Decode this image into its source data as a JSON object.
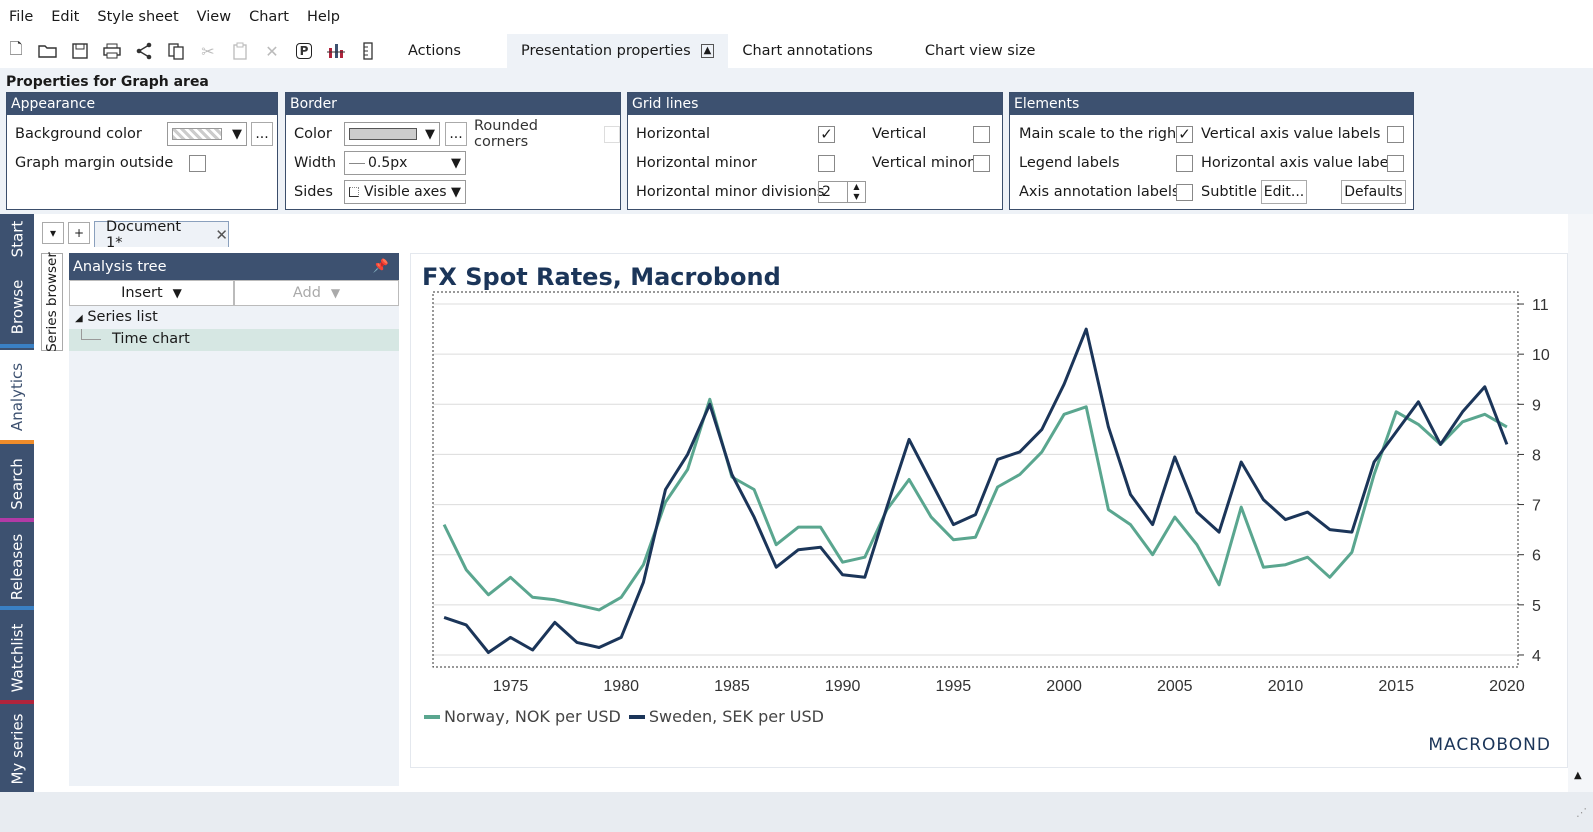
{
  "menu": [
    "File",
    "Edit",
    "Style sheet",
    "View",
    "Chart",
    "Help"
  ],
  "toolbar": {
    "icons": [
      "new-icon",
      "open-icon",
      "save-icon",
      "print-icon",
      "share-icon",
      "copy-icon",
      "cut-icon",
      "paste-icon",
      "delete-icon",
      "presentation-icon",
      "chart-type-icon",
      "ruler-icon"
    ],
    "p_label": "P",
    "tabs": {
      "actions": "Actions",
      "presentation": "Presentation properties",
      "annotations": "Chart annotations",
      "viewsize": "Chart view size"
    }
  },
  "props": {
    "title": "Properties for Graph area",
    "appearance": {
      "head": "Appearance",
      "bg_color": "Background color",
      "graph_margin": "Graph margin outside",
      "more": "..."
    },
    "border": {
      "head": "Border",
      "color": "Color",
      "width": "Width",
      "width_value": "0.5px",
      "sides": "Sides",
      "sides_value": "Visible axes",
      "rounded": "Rounded corners",
      "more": "..."
    },
    "grid": {
      "head": "Grid lines",
      "horizontal": "Horizontal",
      "vertical": "Vertical",
      "h_minor": "Horizontal minor",
      "v_minor": "Vertical minor",
      "h_minor_div": "Horizontal minor divisions",
      "h_minor_div_value": "2"
    },
    "elements": {
      "head": "Elements",
      "main_scale": "Main scale to the right",
      "v_axis_labels": "Vertical axis value labels",
      "legend": "Legend labels",
      "h_axis_labels": "Horizontal axis value labels",
      "axis_annot": "Axis annotation labels",
      "subtitle": "Subtitle",
      "edit": "Edit...",
      "defaults": "Defaults"
    }
  },
  "left_tabs": [
    "Start",
    "Browse",
    "Analytics",
    "Search",
    "Releases",
    "Watchlist",
    "My series"
  ],
  "document": {
    "tab": "Document 1*",
    "down": "▾",
    "plus": "+"
  },
  "series_browser": "Series browser",
  "tree": {
    "head": "Analysis tree",
    "insert": "Insert",
    "add": "Add",
    "series_list": "Series list",
    "time_chart": "Time chart"
  },
  "chart": {
    "title": "FX Spot Rates, Macrobond",
    "brand": "MACROBOND",
    "legend": [
      "Norway, NOK per USD",
      "Sweden, SEK per USD"
    ]
  },
  "colors": {
    "nav": "#3d5170",
    "norway": "#5aa68f",
    "sweden": "#1b3559"
  },
  "chart_data": {
    "type": "line",
    "title": "FX Spot Rates, Macrobond",
    "x": [
      1972,
      1973,
      1974,
      1975,
      1976,
      1977,
      1978,
      1979,
      1980,
      1981,
      1982,
      1983,
      1984,
      1985,
      1986,
      1987,
      1988,
      1989,
      1990,
      1991,
      1992,
      1993,
      1994,
      1995,
      1996,
      1997,
      1998,
      1999,
      2000,
      2001,
      2002,
      2003,
      2004,
      2005,
      2006,
      2007,
      2008,
      2009,
      2010,
      2011,
      2012,
      2013,
      2014,
      2015,
      2016,
      2017,
      2018,
      2019,
      2020
    ],
    "series": [
      {
        "name": "Norway, NOK per USD",
        "values": [
          6.6,
          5.7,
          5.2,
          5.55,
          5.15,
          5.1,
          5.0,
          4.9,
          5.15,
          5.8,
          7.05,
          7.7,
          9.1,
          7.55,
          7.3,
          6.2,
          6.55,
          6.55,
          5.85,
          5.95,
          6.9,
          7.5,
          6.75,
          6.3,
          6.35,
          7.35,
          7.6,
          8.05,
          8.8,
          8.95,
          6.9,
          6.6,
          6.0,
          6.75,
          6.2,
          5.4,
          6.95,
          5.75,
          5.8,
          5.95,
          5.55,
          6.05,
          7.6,
          8.85,
          8.6,
          8.2,
          8.65,
          8.8,
          8.55
        ]
      },
      {
        "name": "Sweden, SEK per USD",
        "values": [
          4.75,
          4.6,
          4.05,
          4.35,
          4.1,
          4.65,
          4.25,
          4.15,
          4.35,
          5.45,
          7.3,
          8.0,
          9.0,
          7.6,
          6.75,
          5.75,
          6.1,
          6.15,
          5.6,
          5.55,
          6.95,
          8.3,
          7.45,
          6.6,
          6.8,
          7.9,
          8.05,
          8.5,
          9.4,
          10.5,
          8.55,
          7.2,
          6.6,
          7.95,
          6.85,
          6.45,
          7.85,
          7.1,
          6.7,
          6.85,
          6.5,
          6.45,
          7.85,
          8.45,
          9.05,
          8.2,
          8.85,
          9.35,
          8.2
        ]
      }
    ],
    "xticks": [
      1975,
      1980,
      1985,
      1990,
      1995,
      2000,
      2005,
      2010,
      2015,
      2020
    ],
    "yticks": [
      4,
      5,
      6,
      7,
      8,
      9,
      10,
      11
    ],
    "ylim": [
      3.8,
      11.2
    ],
    "grid": "horizontal",
    "y_axis_side": "right",
    "legend_placement": "bottom-left"
  }
}
